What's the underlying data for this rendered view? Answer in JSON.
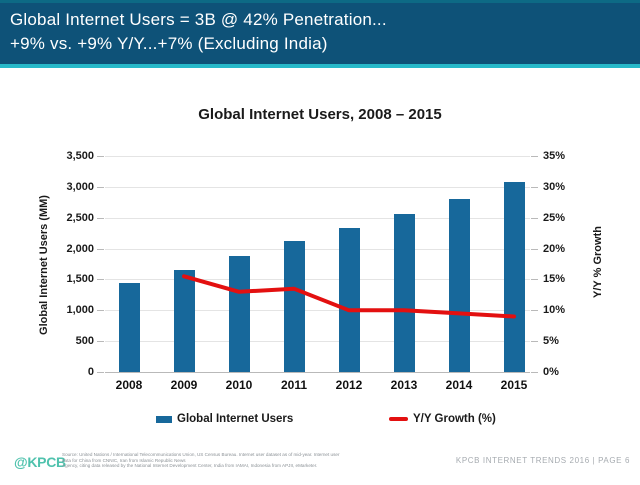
{
  "header": {
    "line1": "Global Internet Users = 3B @ 42% Penetration...",
    "line2": "+9% vs. +9% Y/Y...+7% (Excluding India)"
  },
  "chart_data": {
    "type": "bar",
    "title": "Global Internet Users, 2008 – 2015",
    "categories": [
      "2008",
      "2009",
      "2010",
      "2011",
      "2012",
      "2013",
      "2014",
      "2015"
    ],
    "series": [
      {
        "name": "Global Internet Users",
        "type": "bar",
        "axis": "left",
        "values": [
          1450,
          1650,
          1880,
          2120,
          2330,
          2560,
          2800,
          3075
        ]
      },
      {
        "name": "Y/Y Growth (%)",
        "type": "line",
        "axis": "right",
        "x": [
          "2009",
          "2010",
          "2011",
          "2012",
          "2013",
          "2014",
          "2015"
        ],
        "values": [
          15.5,
          13,
          13.5,
          10,
          10,
          9.5,
          9
        ]
      }
    ],
    "left_axis": {
      "label": "Global Internet Users (MM)",
      "min": 0,
      "max": 3500,
      "tick_step": 500,
      "tick_labels": [
        "0",
        "500",
        "1,000",
        "1,500",
        "2,000",
        "2,500",
        "3,000",
        "3,500"
      ]
    },
    "right_axis": {
      "label": "Y/Y % Growth",
      "min": 0,
      "max": 35,
      "tick_step": 5,
      "tick_labels": [
        "0%",
        "5%",
        "10%",
        "15%",
        "20%",
        "25%",
        "30%",
        "35%"
      ]
    },
    "legend": {
      "position": "bottom",
      "bar_label": "Global Internet Users",
      "line_label": "Y/Y Growth (%)"
    },
    "grid": true,
    "colors": {
      "bar": "#17689b",
      "line": "#e31010",
      "header_bg": "#0e5278",
      "divider": "#27b9c9",
      "logo": "#4fc2ad"
    }
  },
  "footer": {
    "logo": "@KPCB",
    "source_line1": "Source: United Nations / International Telecommunications Union, US Census Bureau. Internet user dataset as of mid-year. Internet user data for China from CNNIC, Iran from Islamic Republic News",
    "source_line2": "Agency, citing data released by the National Internet Development Center, India from IAMAI, Indonesia from APJII, eMarketer.",
    "page_label": "KPCB INTERNET TRENDS 2016   |   PAGE 6"
  }
}
